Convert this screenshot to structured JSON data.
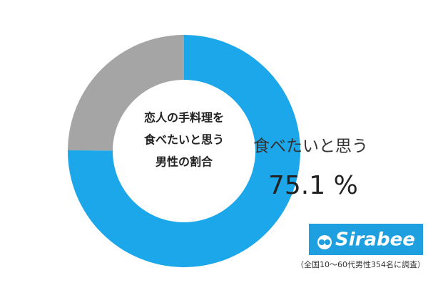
{
  "chart_data": {
    "type": "donut",
    "title": [
      "恋人の手料理を",
      "食べたいと思う",
      "男性の割合"
    ],
    "categories": [
      "食べたいと思う",
      null
    ],
    "values": [
      75.1,
      24.9
    ],
    "value_labels": [
      "75.1 %",
      null
    ],
    "colors": [
      "#1ba7ea",
      "#a5a5a5"
    ]
  },
  "logo": "Sirabee",
  "footnote": "（全国10～60代男性354名に調査）"
}
